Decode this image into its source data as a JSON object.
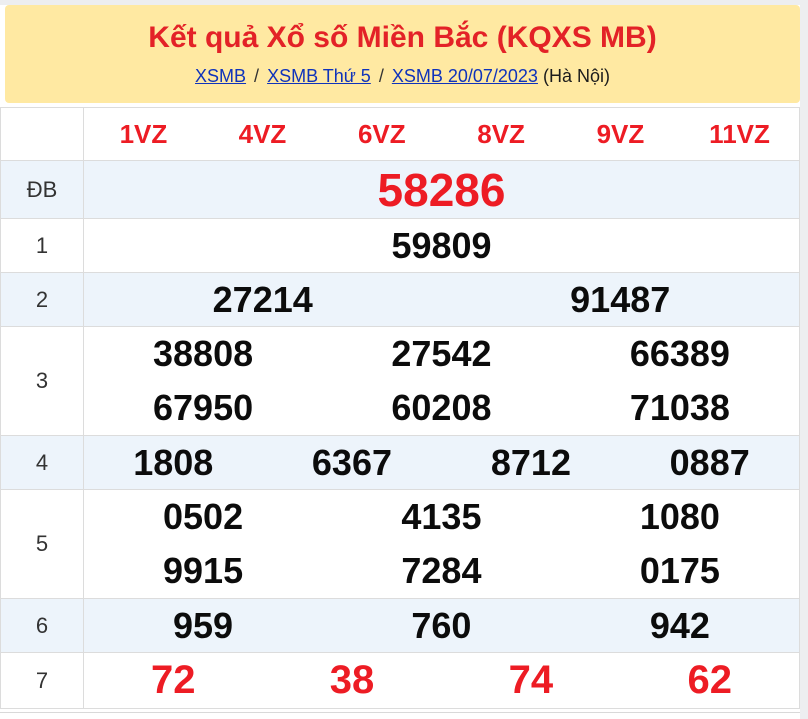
{
  "banner": {
    "title": "Kết quả Xổ số Miền Bắc (KQXS MB)",
    "breadcrumb": [
      {
        "label": "XSMB"
      },
      {
        "label": "XSMB Thứ 5"
      },
      {
        "label": "XSMB 20/07/2023"
      }
    ],
    "separator": "/",
    "suffix": "(Hà Nội)"
  },
  "table": {
    "columns": [
      "1VZ",
      "4VZ",
      "6VZ",
      "8VZ",
      "9VZ",
      "11VZ"
    ],
    "rows": [
      {
        "label": "ĐB",
        "highlight": true,
        "lines": [
          [
            "58286"
          ]
        ]
      },
      {
        "label": "1",
        "highlight": false,
        "lines": [
          [
            "59809"
          ]
        ]
      },
      {
        "label": "2",
        "highlight": false,
        "lines": [
          [
            "27214",
            "91487"
          ]
        ]
      },
      {
        "label": "3",
        "highlight": false,
        "lines": [
          [
            "38808",
            "27542",
            "66389"
          ],
          [
            "67950",
            "60208",
            "71038"
          ]
        ]
      },
      {
        "label": "4",
        "highlight": false,
        "lines": [
          [
            "1808",
            "6367",
            "8712",
            "0887"
          ]
        ]
      },
      {
        "label": "5",
        "highlight": false,
        "lines": [
          [
            "0502",
            "4135",
            "1080"
          ],
          [
            "9915",
            "7284",
            "0175"
          ]
        ]
      },
      {
        "label": "6",
        "highlight": false,
        "lines": [
          [
            "959",
            "760",
            "942"
          ]
        ]
      },
      {
        "label": "7",
        "highlight": true,
        "lines": [
          [
            "72",
            "38",
            "74",
            "62"
          ]
        ]
      }
    ]
  },
  "colors": {
    "banner_yellow": "#ffe9a2",
    "title_red": "#e32227",
    "accent_red": "#ed1c24",
    "link_blue": "#0f33bb",
    "row_alt_blue": "#edf4fb",
    "border_gray": "#dcdcdc"
  }
}
